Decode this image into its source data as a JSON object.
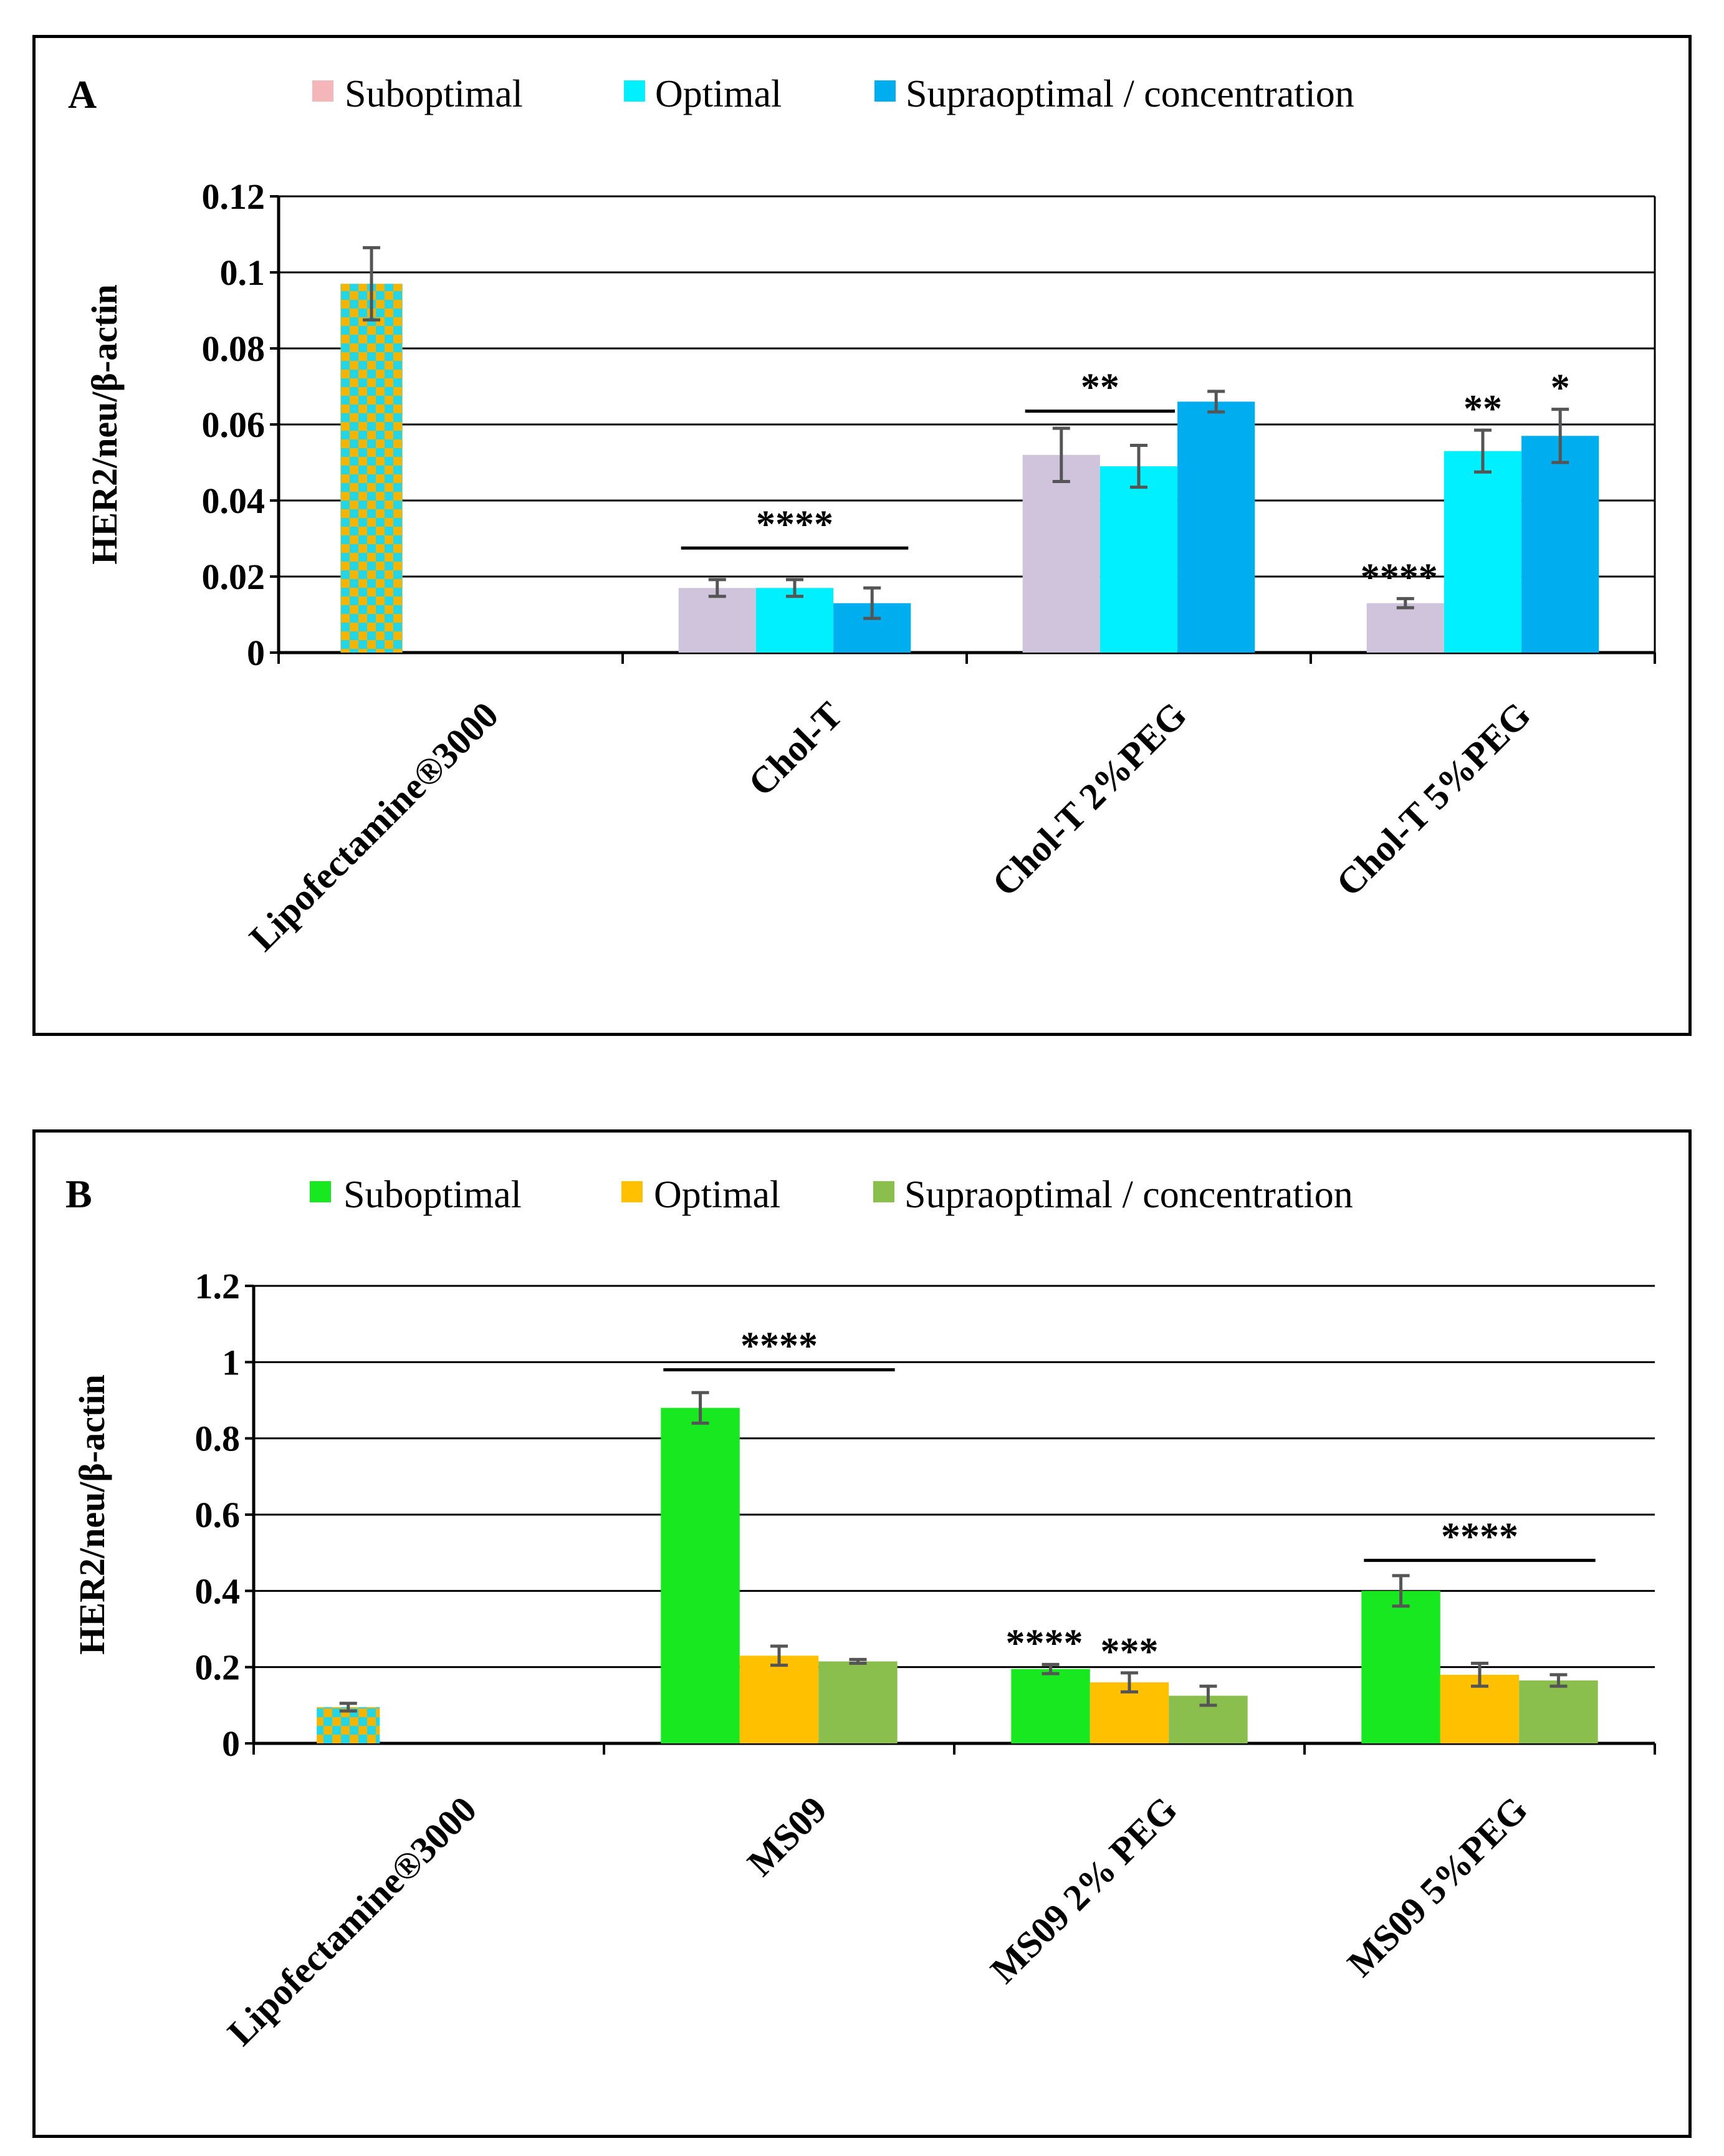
{
  "chart_data": [
    {
      "panel_label": "A",
      "type": "bar",
      "ylabel": "HER2/neu/β-actin",
      "ylim": [
        0,
        0.12
      ],
      "yticks": [
        0,
        0.02,
        0.04,
        0.06,
        0.08,
        0.1,
        0.12
      ],
      "ytick_labels": [
        "0",
        "0.02",
        "0.04",
        "0.06",
        "0.08",
        "0.1",
        "0.12"
      ],
      "categories": [
        "Lipofectamine®3000",
        "Chol-T",
        "Chol-T 2%PEG",
        "Chol-T 5%PEG"
      ],
      "legend": [
        "Suboptimal",
        "Optimal",
        "Supraoptimal / concentration"
      ],
      "colors": {
        "Suboptimal": "#f4b6b8",
        "Optimal": "#00f0ff",
        "Supraoptimal": "#00aeef",
        "grouped_sub": "#cfc4dc"
      },
      "control": {
        "category": "Lipofectamine®3000",
        "value": 0.097,
        "error": 0.0095,
        "pattern_colors": [
          "#f5b400",
          "#22d6e8"
        ]
      },
      "series": [
        {
          "name": "Suboptimal",
          "values": [
            null,
            0.017,
            0.052,
            0.013
          ],
          "errors": [
            null,
            0.0022,
            0.007,
            0.0012
          ]
        },
        {
          "name": "Optimal",
          "values": [
            null,
            0.017,
            0.049,
            0.053
          ],
          "errors": [
            null,
            0.0022,
            0.0055,
            0.0055
          ]
        },
        {
          "name": "Supraoptimal / concentration",
          "values": [
            null,
            0.013,
            0.066,
            0.057
          ],
          "errors": [
            null,
            0.004,
            0.0027,
            0.007
          ]
        }
      ],
      "annotations": [
        {
          "text": "****",
          "type": "bracket",
          "category": 1,
          "level": 0.0275
        },
        {
          "text": "**",
          "type": "bracket",
          "category": 2,
          "from_series": 0,
          "to_series": 1,
          "level": 0.0635
        },
        {
          "text": "****",
          "type": "bar",
          "category": 3,
          "series": 0
        },
        {
          "text": "**",
          "type": "bar",
          "category": 3,
          "series": 1
        },
        {
          "text": "*",
          "type": "bar",
          "category": 3,
          "series": 2
        }
      ]
    },
    {
      "panel_label": "B",
      "type": "bar",
      "ylabel": "HER2/neu/β-actin",
      "ylim": [
        0,
        1.2
      ],
      "yticks": [
        0,
        0.2,
        0.4,
        0.6,
        0.8,
        1,
        1.2
      ],
      "ytick_labels": [
        "0",
        "0.2",
        "0.4",
        "0.6",
        "0.8",
        "1",
        "1.2"
      ],
      "categories": [
        "Lipofectamine®3000",
        "MS09",
        "MS09 2% PEG",
        "MS09 5%PEG"
      ],
      "legend": [
        "Suboptimal",
        "Optimal",
        "Supraoptimal / concentration"
      ],
      "colors": {
        "Suboptimal": "#17e81f",
        "Optimal": "#ffc000",
        "Supraoptimal": "#8bbf4d"
      },
      "control": {
        "category": "Lipofectamine®3000",
        "value": 0.095,
        "error": 0.01,
        "pattern_colors": [
          "#f5b400",
          "#22d6e8"
        ]
      },
      "series": [
        {
          "name": "Suboptimal",
          "values": [
            null,
            0.88,
            0.195,
            0.4
          ],
          "errors": [
            null,
            0.04,
            0.012,
            0.04
          ]
        },
        {
          "name": "Optimal",
          "values": [
            null,
            0.23,
            0.16,
            0.18
          ],
          "errors": [
            null,
            0.025,
            0.025,
            0.03
          ]
        },
        {
          "name": "Supraoptimal / concentration",
          "values": [
            null,
            0.215,
            0.125,
            0.165
          ],
          "errors": [
            null,
            0.005,
            0.025,
            0.015
          ]
        }
      ],
      "annotations": [
        {
          "text": "****",
          "type": "bracket",
          "category": 1,
          "level": 0.98
        },
        {
          "text": "****",
          "type": "bar",
          "category": 2,
          "series": 0
        },
        {
          "text": "***",
          "type": "bar",
          "category": 2,
          "series": 1
        },
        {
          "text": "****",
          "type": "bracket",
          "category": 3,
          "level": 0.48
        }
      ]
    }
  ]
}
